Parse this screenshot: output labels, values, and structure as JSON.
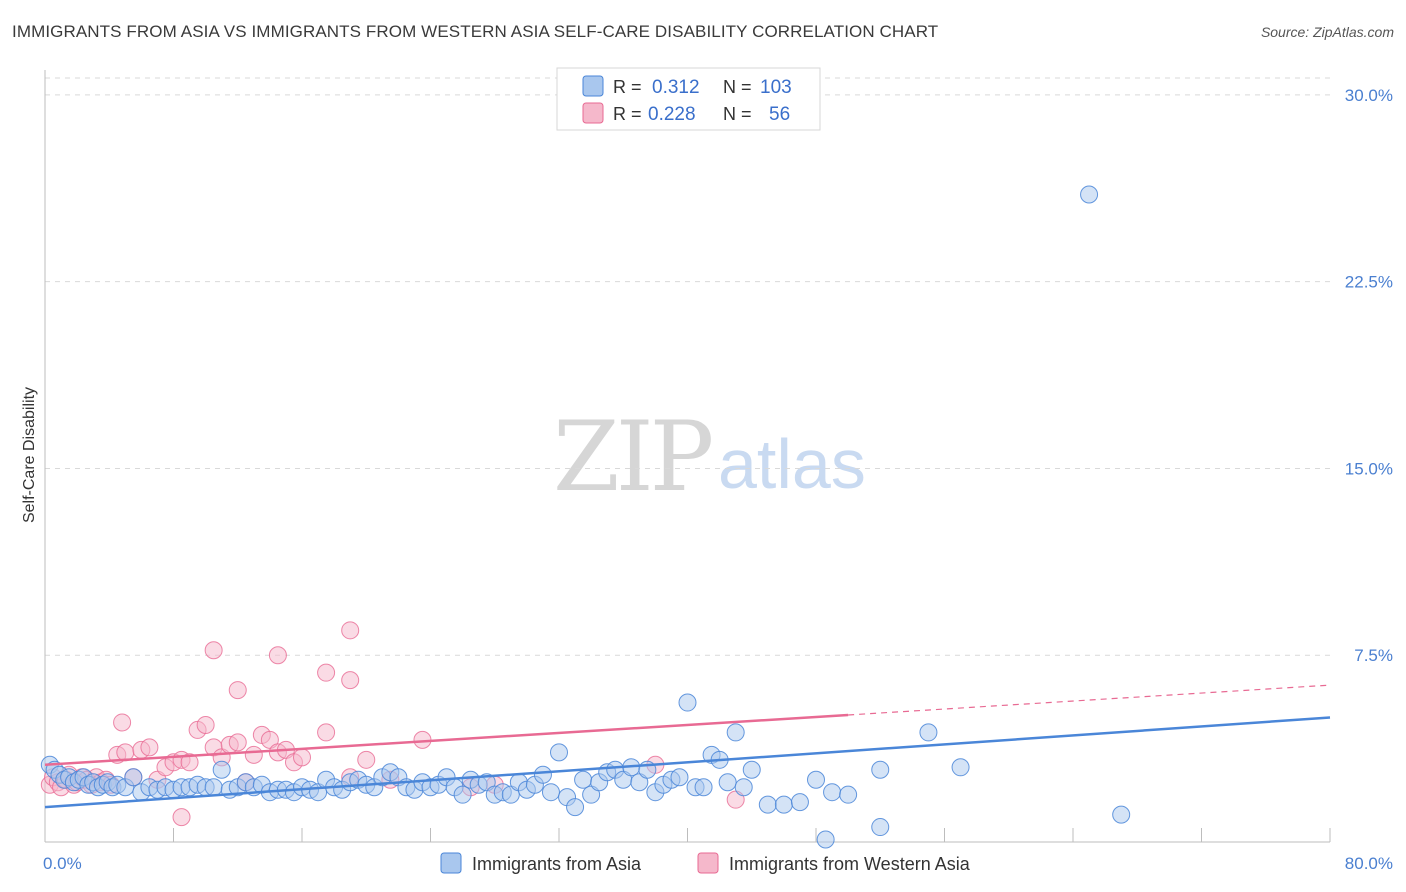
{
  "title": "IMMIGRANTS FROM ASIA VS IMMIGRANTS FROM WESTERN ASIA SELF-CARE DISABILITY CORRELATION CHART",
  "source": "Source: ZipAtlas.com",
  "watermark": {
    "zip": "ZIP",
    "atlas": "atlas"
  },
  "colors": {
    "blue": "#4a86d8",
    "blue_fill": "#a9c7ee",
    "pink": "#e86a93",
    "pink_fill": "#f5b8cb",
    "grid": "#d9d9d9",
    "axis_label": "#4a7fd0"
  },
  "stats_legend": {
    "r_label": "R =",
    "n_label": "N =",
    "rows": [
      {
        "series": "blue",
        "r": "0.312",
        "n": "103"
      },
      {
        "series": "pink",
        "r": "0.228",
        "n": "56"
      }
    ]
  },
  "chart_data": {
    "type": "scatter",
    "title": "IMMIGRANTS FROM ASIA VS IMMIGRANTS FROM WESTERN ASIA SELF-CARE DISABILITY CORRELATION CHART",
    "xlabel": "",
    "ylabel": "Self-Care Disability",
    "xlim": [
      0,
      80
    ],
    "ylim": [
      0,
      31
    ],
    "x_tick_labels": [
      {
        "value": 0,
        "label": "0.0%"
      },
      {
        "value": 80,
        "label": "80.0%"
      }
    ],
    "y_ticks": [
      {
        "value": 7.5,
        "label": "7.5%"
      },
      {
        "value": 15.0,
        "label": "15.0%"
      },
      {
        "value": 22.5,
        "label": "22.5%"
      },
      {
        "value": 30.0,
        "label": "30.0%"
      }
    ],
    "x_minor_ticks": [
      8,
      16,
      24,
      32,
      40,
      48,
      56,
      64,
      72,
      80
    ],
    "legend": [
      "Immigrants from Asia",
      "Immigrants from Western Asia"
    ],
    "series": [
      {
        "name": "Immigrants from Asia",
        "color": "#4a86d8",
        "r": 0.312,
        "n": 103,
        "trend": {
          "x": [
            0,
            80
          ],
          "y": [
            1.4,
            5.0
          ]
        },
        "points": [
          [
            0.3,
            3.1
          ],
          [
            0.6,
            2.9
          ],
          [
            0.9,
            2.7
          ],
          [
            1.2,
            2.5
          ],
          [
            1.5,
            2.6
          ],
          [
            1.8,
            2.4
          ],
          [
            2.1,
            2.5
          ],
          [
            2.4,
            2.6
          ],
          [
            2.7,
            2.3
          ],
          [
            3.0,
            2.4
          ],
          [
            3.3,
            2.2
          ],
          [
            3.6,
            2.3
          ],
          [
            3.9,
            2.4
          ],
          [
            4.2,
            2.2
          ],
          [
            4.5,
            2.3
          ],
          [
            5.0,
            2.2
          ],
          [
            5.5,
            2.6
          ],
          [
            6.0,
            2.0
          ],
          [
            6.5,
            2.2
          ],
          [
            7.0,
            2.1
          ],
          [
            7.5,
            2.2
          ],
          [
            8.0,
            2.1
          ],
          [
            8.5,
            2.2
          ],
          [
            9.0,
            2.2
          ],
          [
            9.5,
            2.3
          ],
          [
            10.0,
            2.2
          ],
          [
            10.5,
            2.2
          ],
          [
            11.0,
            2.9
          ],
          [
            11.5,
            2.1
          ],
          [
            12.0,
            2.2
          ],
          [
            12.5,
            2.4
          ],
          [
            13.0,
            2.2
          ],
          [
            13.5,
            2.3
          ],
          [
            14.0,
            2.0
          ],
          [
            14.5,
            2.1
          ],
          [
            15.0,
            2.1
          ],
          [
            15.5,
            2.0
          ],
          [
            16.0,
            2.2
          ],
          [
            16.5,
            2.1
          ],
          [
            17.0,
            2.0
          ],
          [
            17.5,
            2.5
          ],
          [
            18.0,
            2.2
          ],
          [
            18.5,
            2.1
          ],
          [
            19.0,
            2.4
          ],
          [
            19.5,
            2.5
          ],
          [
            20.0,
            2.3
          ],
          [
            20.5,
            2.2
          ],
          [
            21.0,
            2.6
          ],
          [
            21.5,
            2.8
          ],
          [
            22.0,
            2.6
          ],
          [
            22.5,
            2.2
          ],
          [
            23.0,
            2.1
          ],
          [
            23.5,
            2.4
          ],
          [
            24.0,
            2.2
          ],
          [
            24.5,
            2.3
          ],
          [
            25.0,
            2.6
          ],
          [
            25.5,
            2.2
          ],
          [
            26.0,
            1.9
          ],
          [
            26.5,
            2.5
          ],
          [
            27.0,
            2.3
          ],
          [
            27.5,
            2.4
          ],
          [
            28.0,
            1.9
          ],
          [
            28.5,
            2.0
          ],
          [
            29.0,
            1.9
          ],
          [
            29.5,
            2.4
          ],
          [
            30.0,
            2.1
          ],
          [
            30.5,
            2.3
          ],
          [
            31.0,
            2.7
          ],
          [
            31.5,
            2.0
          ],
          [
            32.0,
            3.6
          ],
          [
            32.5,
            1.8
          ],
          [
            33.0,
            1.4
          ],
          [
            33.5,
            2.5
          ],
          [
            34.0,
            1.9
          ],
          [
            34.5,
            2.4
          ],
          [
            35.0,
            2.8
          ],
          [
            35.5,
            2.9
          ],
          [
            36.0,
            2.5
          ],
          [
            36.5,
            3.0
          ],
          [
            37.0,
            2.4
          ],
          [
            37.5,
            2.9
          ],
          [
            38.0,
            2.0
          ],
          [
            38.5,
            2.3
          ],
          [
            39.0,
            2.5
          ],
          [
            39.5,
            2.6
          ],
          [
            40.0,
            5.6
          ],
          [
            40.5,
            2.2
          ],
          [
            41.0,
            2.2
          ],
          [
            41.5,
            3.5
          ],
          [
            42.0,
            3.3
          ],
          [
            42.5,
            2.4
          ],
          [
            43.0,
            4.4
          ],
          [
            43.5,
            2.2
          ],
          [
            44.0,
            2.9
          ],
          [
            45.0,
            1.5
          ],
          [
            46.0,
            1.5
          ],
          [
            47.0,
            1.6
          ],
          [
            48.0,
            2.5
          ],
          [
            49.0,
            2.0
          ],
          [
            50.0,
            1.9
          ],
          [
            52.0,
            2.9
          ],
          [
            55.0,
            4.4
          ],
          [
            57.0,
            3.0
          ],
          [
            65.0,
            26.0
          ],
          [
            48.6,
            0.1
          ],
          [
            52.0,
            0.6
          ],
          [
            67.0,
            1.1
          ]
        ]
      },
      {
        "name": "Immigrants from Western Asia",
        "color": "#e86a93",
        "r": 0.228,
        "n": 56,
        "trend": {
          "x": [
            0,
            50
          ],
          "y": [
            3.1,
            5.1
          ]
        },
        "trend_dashed": {
          "x": [
            50,
            80
          ],
          "y": [
            5.1,
            6.3
          ]
        },
        "points": [
          [
            0.3,
            2.3
          ],
          [
            0.5,
            2.6
          ],
          [
            0.8,
            2.4
          ],
          [
            1.0,
            2.2
          ],
          [
            1.3,
            2.5
          ],
          [
            1.5,
            2.7
          ],
          [
            1.8,
            2.3
          ],
          [
            2.0,
            2.4
          ],
          [
            2.3,
            2.6
          ],
          [
            2.6,
            2.5
          ],
          [
            2.9,
            2.3
          ],
          [
            3.2,
            2.6
          ],
          [
            3.5,
            2.4
          ],
          [
            3.8,
            2.5
          ],
          [
            4.1,
            2.3
          ],
          [
            4.5,
            3.5
          ],
          [
            5.0,
            3.6
          ],
          [
            5.5,
            2.6
          ],
          [
            6.0,
            3.7
          ],
          [
            6.5,
            3.8
          ],
          [
            7.0,
            2.5
          ],
          [
            7.5,
            3.0
          ],
          [
            8.0,
            3.2
          ],
          [
            8.5,
            3.3
          ],
          [
            9.0,
            3.2
          ],
          [
            9.5,
            4.5
          ],
          [
            10.0,
            4.7
          ],
          [
            10.5,
            3.8
          ],
          [
            11.0,
            3.4
          ],
          [
            11.5,
            3.9
          ],
          [
            12.0,
            4.0
          ],
          [
            12.5,
            2.4
          ],
          [
            13.0,
            3.5
          ],
          [
            13.5,
            4.3
          ],
          [
            14.0,
            4.1
          ],
          [
            14.5,
            3.6
          ],
          [
            15.0,
            3.7
          ],
          [
            15.5,
            3.2
          ],
          [
            16.0,
            3.4
          ],
          [
            17.5,
            4.4
          ],
          [
            19.0,
            2.6
          ],
          [
            20.0,
            3.3
          ],
          [
            21.5,
            2.5
          ],
          [
            23.5,
            4.1
          ],
          [
            26.5,
            2.2
          ],
          [
            28.0,
            2.3
          ],
          [
            38.0,
            3.1
          ],
          [
            43.0,
            1.7
          ],
          [
            4.8,
            4.8
          ],
          [
            10.5,
            7.7
          ],
          [
            12.0,
            6.1
          ],
          [
            14.5,
            7.5
          ],
          [
            17.5,
            6.8
          ],
          [
            19.0,
            6.5
          ],
          [
            19.0,
            8.5
          ],
          [
            8.5,
            1.0
          ]
        ]
      }
    ]
  }
}
